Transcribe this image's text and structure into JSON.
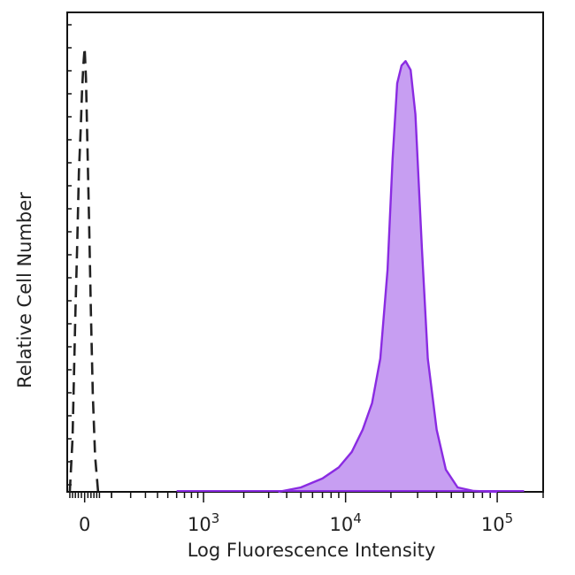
{
  "chart_data": {
    "type": "area",
    "title": "",
    "xlabel": "Log Fluorescence Intensity",
    "ylabel": "Relative Cell Number",
    "x_scale": "biexponential",
    "xlim": [
      -60,
      200000
    ],
    "ylim": [
      0,
      100
    ],
    "x_ticks": [
      {
        "value": 0,
        "base": "0",
        "exp": ""
      },
      {
        "value": 1000,
        "base": "10",
        "exp": "3"
      },
      {
        "value": 10000,
        "base": "10",
        "exp": "4"
      },
      {
        "value": 100000,
        "base": "10",
        "exp": "5"
      }
    ],
    "grid": false,
    "legend": "none",
    "series": [
      {
        "style": "dashed",
        "color": "#222222",
        "fill": "none",
        "x": [
          -50,
          -40,
          -30,
          -24,
          -18,
          -12,
          -8,
          -4,
          0,
          4,
          8,
          14,
          20,
          26,
          34,
          45
        ],
        "y": [
          0,
          12,
          40,
          55,
          72,
          82,
          90,
          96,
          100,
          93,
          80,
          60,
          40,
          22,
          8,
          0
        ]
      },
      {
        "style": "solid",
        "color": "#8a2be2",
        "fill": "#c79ef2",
        "x": [
          3500,
          5000,
          7000,
          9000,
          11000,
          13000,
          15000,
          17000,
          19000,
          20500,
          22000,
          23500,
          25000,
          27000,
          29000,
          32000,
          35000,
          40000,
          46000,
          55000,
          70000,
          100000
        ],
        "y": [
          0,
          1,
          3,
          5.5,
          9,
          14,
          20,
          30,
          50,
          75,
          92,
          96,
          97,
          95,
          85,
          55,
          30,
          14,
          5,
          1,
          0.2,
          0
        ]
      }
    ]
  }
}
